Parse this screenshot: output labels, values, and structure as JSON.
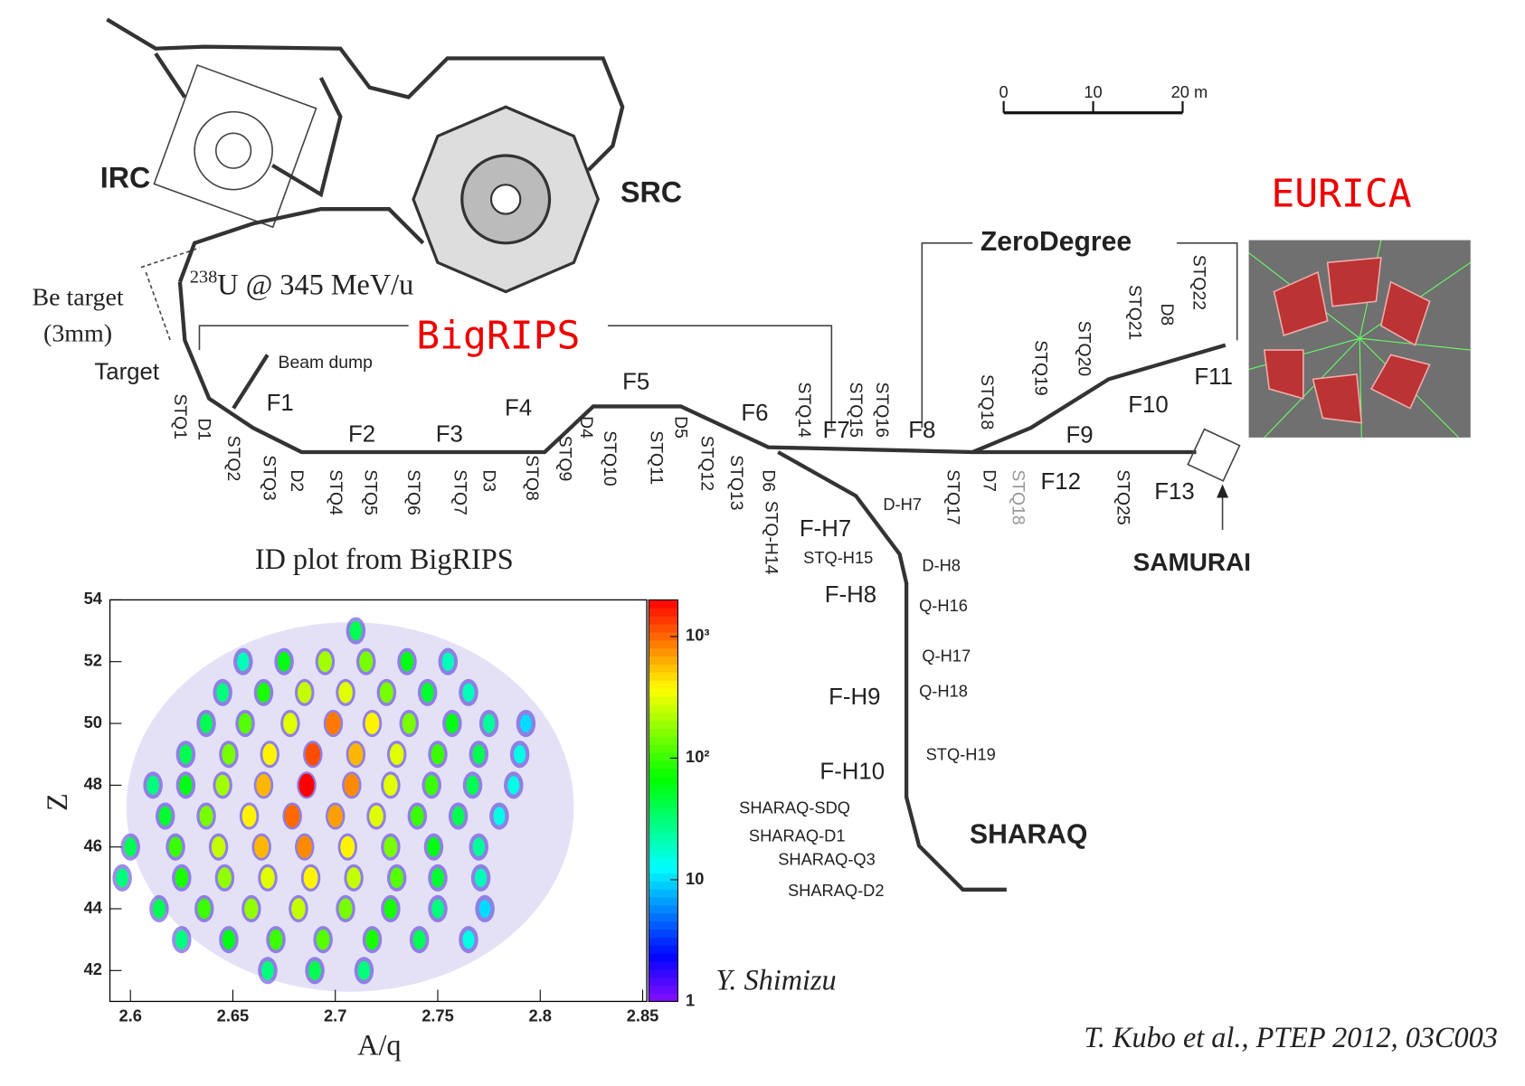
{
  "diagram": {
    "facility_labels": [
      "IRC",
      "SRC",
      "BigRIPS",
      "ZeroDegree",
      "SAMURAI",
      "SHARAQ",
      "EURICA"
    ],
    "beam": {
      "mass_number": "238",
      "text": "U @ 345 MeV/u"
    },
    "target_note": [
      "Be target",
      "(3mm)"
    ],
    "beamline_labels": [
      "Target",
      "Beam dump"
    ],
    "focal_plane_labels": [
      "F1",
      "F2",
      "F3",
      "F4",
      "F5",
      "F6",
      "F7",
      "F8",
      "F9",
      "F10",
      "F11",
      "F12",
      "F13",
      "F-H7",
      "F-H8",
      "F-H9",
      "F-H10"
    ],
    "magnet_labels": [
      "STQ1",
      "D1",
      "STQ2",
      "STQ3",
      "D2",
      "STQ4",
      "STQ5",
      "STQ6",
      "STQ7",
      "D3",
      "STQ8",
      "STQ9",
      "D4",
      "STQ10",
      "STQ11",
      "D5",
      "STQ12",
      "STQ13",
      "D6",
      "STQ-H14",
      "STQ14",
      "STQ15",
      "STQ16",
      "STQ17",
      "D7",
      "STQ18",
      "STQ18",
      "STQ19",
      "STQ20",
      "STQ21",
      "D8",
      "STQ22",
      "STQ25"
    ],
    "branch_labels": [
      "D-H7",
      "STQ-H15",
      "D-H8",
      "Q-H16",
      "Q-H17",
      "Q-H18",
      "STQ-H19",
      "SHARAQ-SDQ",
      "SHARAQ-D1",
      "SHARAQ-Q3",
      "SHARAQ-D2"
    ],
    "scale_bar": {
      "ticks": [
        0,
        10,
        {
          "value": 20,
          "label": "20 m"
        }
      ]
    },
    "credits": [
      "Y. Shimizu",
      "T. Kubo et al.,  PTEP 2012, 03C003"
    ]
  },
  "chart_data": {
    "type": "heatmap",
    "title": "ID plot from BigRIPS",
    "xlabel": "A/q",
    "ylabel": "Z",
    "xlim": [
      2.59,
      2.852
    ],
    "xticks": [
      2.6,
      2.65,
      2.7,
      2.75,
      2.8,
      2.85
    ],
    "ylim": [
      41,
      54
    ],
    "yticks": [
      42,
      44,
      46,
      48,
      50,
      52,
      54
    ],
    "zlim": [
      1,
      2000
    ],
    "zticks": [
      1,
      10,
      {
        "value": 100,
        "label": "10²"
      },
      {
        "value": 1000,
        "label": "10³"
      }
    ],
    "log_z": true,
    "x": [
      2.71,
      2.655,
      2.675,
      2.695,
      2.715,
      2.735,
      2.755,
      2.645,
      2.665,
      2.685,
      2.705,
      2.725,
      2.745,
      2.765,
      2.637,
      2.656,
      2.678,
      2.699,
      2.718,
      2.736,
      2.757,
      2.775,
      2.793,
      2.627,
      2.648,
      2.668,
      2.689,
      2.71,
      2.73,
      2.75,
      2.77,
      2.79,
      2.611,
      2.627,
      2.645,
      2.665,
      2.686,
      2.708,
      2.727,
      2.747,
      2.767,
      2.787,
      2.617,
      2.637,
      2.658,
      2.679,
      2.7,
      2.72,
      2.74,
      2.76,
      2.78,
      2.6,
      2.622,
      2.643,
      2.664,
      2.685,
      2.706,
      2.727,
      2.748,
      2.77,
      2.596,
      2.625,
      2.646,
      2.667,
      2.688,
      2.709,
      2.73,
      2.75,
      2.771,
      2.614,
      2.636,
      2.659,
      2.682,
      2.705,
      2.727,
      2.75,
      2.773,
      2.625,
      2.648,
      2.671,
      2.694,
      2.718,
      2.741,
      2.765,
      2.667,
      2.69,
      2.714
    ],
    "y": [
      53,
      52,
      52,
      52,
      52,
      52,
      52,
      51,
      51,
      51,
      51,
      51,
      51,
      51,
      50,
      50,
      50,
      50,
      50,
      50,
      50,
      50,
      50,
      49,
      49,
      49,
      49,
      49,
      49,
      49,
      49,
      49,
      48,
      48,
      48,
      48,
      48,
      48,
      48,
      48,
      48,
      48,
      47,
      47,
      47,
      47,
      47,
      47,
      47,
      47,
      47,
      46,
      46,
      46,
      46,
      46,
      46,
      46,
      46,
      46,
      45,
      45,
      45,
      45,
      45,
      45,
      45,
      45,
      45,
      44,
      44,
      44,
      44,
      44,
      44,
      44,
      44,
      43,
      43,
      43,
      43,
      43,
      43,
      43,
      42,
      42,
      42
    ],
    "values": [
      40,
      20,
      60,
      200,
      150,
      60,
      20,
      30,
      80,
      250,
      300,
      150,
      50,
      20,
      40,
      120,
      300,
      900,
      400,
      150,
      60,
      25,
      10,
      40,
      150,
      400,
      1200,
      600,
      300,
      100,
      40,
      15,
      30,
      60,
      200,
      600,
      2000,
      800,
      300,
      100,
      40,
      15,
      50,
      150,
      400,
      1000,
      700,
      300,
      100,
      40,
      15,
      40,
      100,
      250,
      600,
      800,
      400,
      150,
      60,
      25,
      30,
      80,
      180,
      300,
      400,
      250,
      120,
      50,
      20,
      40,
      100,
      180,
      250,
      150,
      80,
      30,
      10,
      30,
      60,
      100,
      120,
      80,
      40,
      15,
      30,
      40,
      30
    ]
  }
}
